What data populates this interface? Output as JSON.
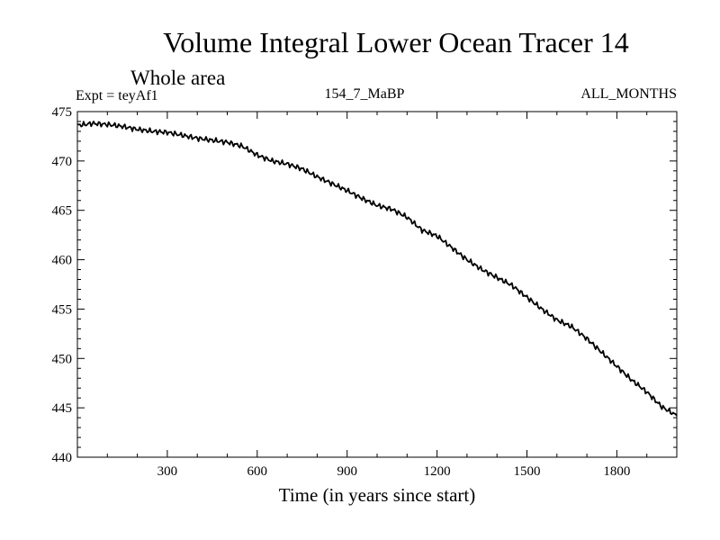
{
  "chart_data": {
    "type": "line",
    "title": "Volume Integral Lower Ocean Tracer 14",
    "subtitle": "Whole area",
    "left_label": "Expt = teyAf1",
    "center_label": "154_7_MaBP",
    "right_label": "ALL_MONTHS",
    "xlabel": "Time (in years since start)",
    "ylabel": "",
    "xlim": [
      0,
      2000
    ],
    "ylim": [
      440,
      475
    ],
    "x_ticks": [
      300,
      600,
      900,
      1200,
      1500,
      1800
    ],
    "y_ticks": [
      440,
      445,
      450,
      455,
      460,
      465,
      470,
      475
    ],
    "grid": false,
    "series": [
      {
        "name": "Lower Ocean Tracer 14",
        "x": [
          0,
          50,
          100,
          150,
          200,
          250,
          300,
          350,
          400,
          450,
          500,
          550,
          600,
          650,
          700,
          750,
          800,
          850,
          900,
          950,
          1000,
          1050,
          1100,
          1150,
          1200,
          1250,
          1300,
          1350,
          1400,
          1450,
          1500,
          1550,
          1600,
          1650,
          1700,
          1750,
          1800,
          1850,
          1900,
          1950,
          2000
        ],
        "values": [
          473.6,
          473.8,
          473.7,
          473.5,
          473.2,
          473.0,
          472.9,
          472.6,
          472.3,
          472.1,
          471.9,
          471.5,
          470.6,
          470.0,
          469.7,
          469.2,
          468.4,
          467.7,
          467.0,
          466.2,
          465.5,
          465.1,
          464.3,
          463.0,
          462.4,
          461.2,
          460.0,
          459.0,
          458.2,
          457.4,
          456.2,
          455.0,
          453.9,
          453.2,
          452.0,
          450.6,
          449.2,
          447.8,
          446.6,
          445.1,
          444.2
        ]
      }
    ]
  }
}
